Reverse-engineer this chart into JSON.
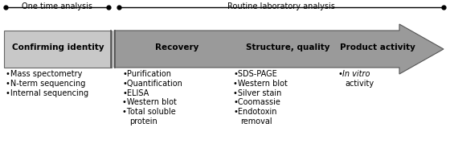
{
  "fig_width": 5.6,
  "fig_height": 1.79,
  "dpi": 100,
  "bg_color": "#ffffff",
  "arrow_color": "#9a9a9a",
  "box_light_gray": "#c8c8c8",
  "one_time_label": "One time analysis",
  "routine_label": "Routine laboratory analysis",
  "sections": [
    "Confirming identity",
    "Recovery",
    "Structure, quality",
    "Product activity"
  ],
  "bullet_lists": [
    [
      "•Mass spectometry",
      "•N-term sequencing",
      "•Internal sequencing"
    ],
    [
      "•Purification",
      "•Quantification",
      "•ELISA",
      "•Western blot",
      "•Total soluble",
      "protein"
    ],
    [
      "•SDS-PAGE",
      "•Western blot",
      "•Silver stain",
      "•Coomassie",
      "•Endotoxin",
      "removal"
    ],
    [
      "•In vitro",
      "activity"
    ]
  ]
}
